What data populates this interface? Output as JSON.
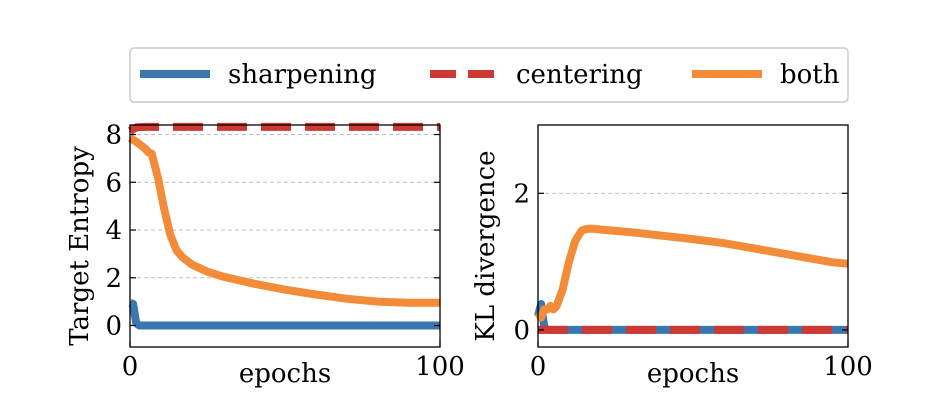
{
  "legend": {
    "placement": "top-center",
    "entries": [
      {
        "label": "sharpening",
        "color": "#3a76b0",
        "style": "solid"
      },
      {
        "label": "centering",
        "color": "#cc3a33",
        "style": "dashed"
      },
      {
        "label": "both",
        "color": "#f28c38",
        "style": "solid"
      }
    ]
  },
  "chart_data": [
    {
      "type": "line",
      "xlabel": "epochs",
      "ylabel": "Target Entropy",
      "xlim": [
        0,
        100
      ],
      "ylim": [
        -0.9,
        8.4
      ],
      "xticks": [
        0,
        100
      ],
      "xtick_labels": [
        "0",
        "100"
      ],
      "yticks": [
        0,
        2,
        4,
        6,
        8
      ],
      "ytick_labels": [
        "0",
        "2",
        "4",
        "6",
        "8"
      ],
      "grid": "horizontal-dashed",
      "series": [
        {
          "name": "sharpening",
          "color": "#3a76b0",
          "style": "solid",
          "x": [
            0,
            1,
            2,
            3,
            100
          ],
          "y": [
            0.95,
            0.9,
            0.1,
            0.0,
            0.0
          ]
        },
        {
          "name": "centering",
          "color": "#cc3a33",
          "style": "dashed",
          "x": [
            0,
            2,
            5,
            100
          ],
          "y": [
            8.15,
            8.3,
            8.32,
            8.32
          ]
        },
        {
          "name": "both",
          "color": "#f28c38",
          "style": "solid",
          "x": [
            0,
            2,
            4,
            5,
            6,
            7,
            9,
            11,
            13,
            15,
            17,
            20,
            25,
            30,
            40,
            50,
            60,
            70,
            80,
            90,
            100
          ],
          "y": [
            7.85,
            7.7,
            7.5,
            7.4,
            7.25,
            7.2,
            6.2,
            4.9,
            3.8,
            3.15,
            2.85,
            2.55,
            2.25,
            2.05,
            1.75,
            1.5,
            1.3,
            1.12,
            1.0,
            0.95,
            0.95
          ]
        }
      ]
    },
    {
      "type": "line",
      "xlabel": "epochs",
      "ylabel": "KL divergence",
      "xlim": [
        0,
        100
      ],
      "ylim": [
        -0.25,
        3.0
      ],
      "xticks": [
        0,
        100
      ],
      "xtick_labels": [
        "0",
        "100"
      ],
      "yticks": [
        0,
        2
      ],
      "ytick_labels": [
        "0",
        "2"
      ],
      "grid": "horizontal-dashed",
      "series": [
        {
          "name": "sharpening",
          "color": "#3a76b0",
          "style": "solid",
          "x": [
            0,
            1,
            2,
            3,
            100
          ],
          "y": [
            0.2,
            0.38,
            0.05,
            0.0,
            0.0
          ]
        },
        {
          "name": "centering",
          "color": "#cc3a33",
          "style": "dashed",
          "x": [
            0,
            100
          ],
          "y": [
            0.0,
            0.0
          ]
        },
        {
          "name": "both",
          "color": "#f28c38",
          "style": "solid",
          "x": [
            0,
            1,
            2,
            3,
            4,
            5,
            6,
            8,
            10,
            12,
            14,
            15,
            16,
            18,
            20,
            25,
            30,
            40,
            50,
            60,
            70,
            80,
            90,
            95,
            100
          ],
          "y": [
            0.25,
            0.18,
            0.3,
            0.3,
            0.35,
            0.3,
            0.35,
            0.6,
            1.0,
            1.3,
            1.45,
            1.47,
            1.48,
            1.48,
            1.47,
            1.45,
            1.43,
            1.38,
            1.33,
            1.27,
            1.19,
            1.11,
            1.03,
            0.99,
            0.97
          ]
        }
      ]
    }
  ]
}
